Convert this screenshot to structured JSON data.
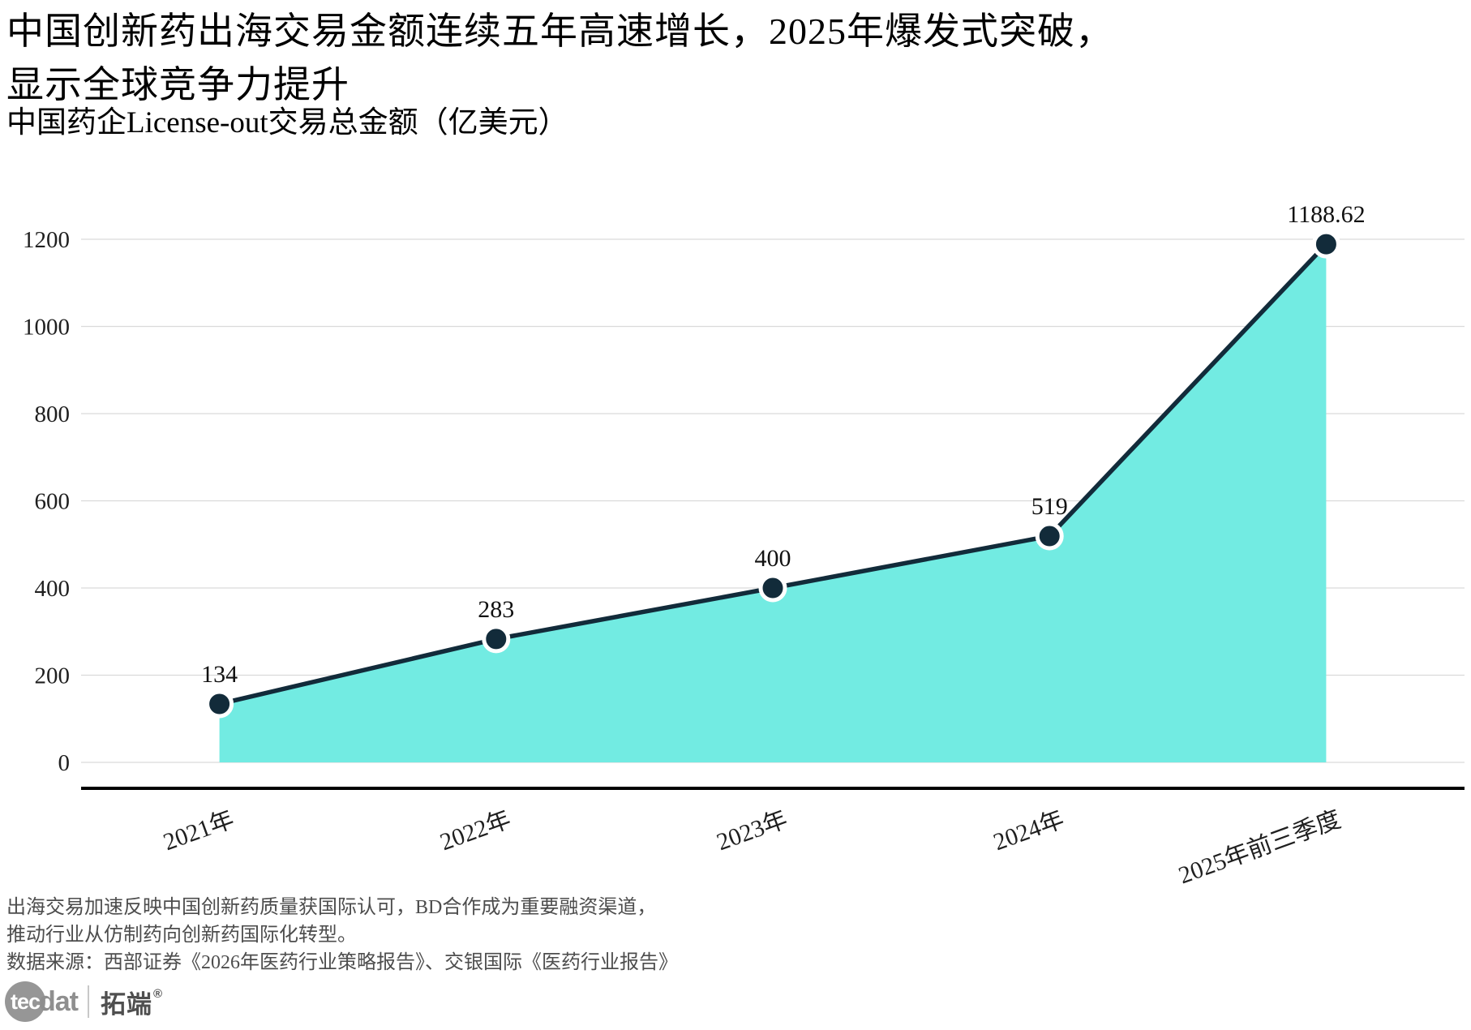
{
  "header": {
    "title_line1": "中国创新药出海交易金额连续五年高速增长，2025年爆发式突破，",
    "title_line2": "显示全球竞争力提升",
    "subtitle": "中国药企License-out交易总金额（亿美元）"
  },
  "chart_data": {
    "type": "area",
    "title": "中国药企License-out交易总金额（亿美元）",
    "categories": [
      "2021年",
      "2022年",
      "2023年",
      "2024年",
      "2025年前三季度"
    ],
    "values": [
      134,
      283,
      400,
      519,
      1188.62
    ],
    "point_labels": [
      "134",
      "283",
      "400",
      "519",
      "1188.62"
    ],
    "xlabel": "",
    "ylabel": "",
    "ylim": [
      0,
      1200
    ],
    "yticks": [
      0,
      200,
      400,
      600,
      800,
      1000,
      1200
    ],
    "grid": true,
    "legend": "none",
    "x_label_rotation_deg": -20,
    "colors": {
      "area_fill": "#72EBE2",
      "line": "#122B3A",
      "marker_fill": "#122B3A",
      "marker_stroke": "#FFFFFF",
      "gridline": "#DADADA",
      "axis_line": "#000000",
      "tick_label": "#1F1F1F",
      "data_label": "#111111"
    }
  },
  "footer": {
    "note_line1": "出海交易加速反映中国创新药质量获国际认可，BD合作成为重要融资渠道，",
    "note_line2": "推动行业从仿制药向创新药国际化转型。",
    "source": "数据来源：西部证券《2026年医药行业策略报告》、交银国际《医药行业报告》"
  },
  "logo": {
    "circle_text": "tec",
    "text": "dat",
    "cn_text": "拓端",
    "reg_mark": "®"
  }
}
